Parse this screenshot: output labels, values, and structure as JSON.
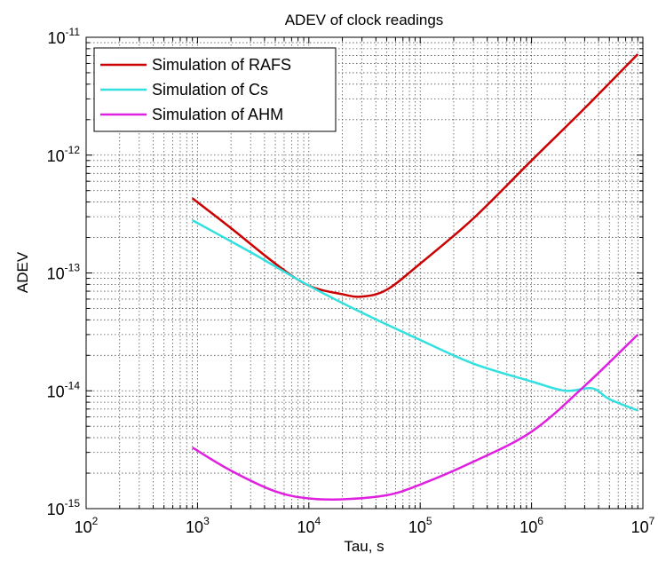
{
  "chart_data": {
    "type": "line",
    "title": "ADEV of clock readings",
    "xlabel": "Tau, s",
    "ylabel": "ADEV",
    "xscale": "log",
    "yscale": "log",
    "xlim": [
      100,
      10000000
    ],
    "ylim": [
      1e-15,
      1e-11
    ],
    "grid": true,
    "legend_position": "top-left",
    "x_ticks": [
      {
        "base": "10",
        "exp": "2"
      },
      {
        "base": "10",
        "exp": "3"
      },
      {
        "base": "10",
        "exp": "4"
      },
      {
        "base": "10",
        "exp": "5"
      },
      {
        "base": "10",
        "exp": "6"
      },
      {
        "base": "10",
        "exp": "7"
      }
    ],
    "y_ticks": [
      {
        "base": "10",
        "exp": "-15"
      },
      {
        "base": "10",
        "exp": "-14"
      },
      {
        "base": "10",
        "exp": "-13"
      },
      {
        "base": "10",
        "exp": "-12"
      },
      {
        "base": "10",
        "exp": "-11"
      }
    ],
    "series": [
      {
        "name": "Simulation of RAFS",
        "color": "#cc0000",
        "x": [
          900,
          2000,
          5000,
          10000,
          20000,
          30000,
          50000,
          100000,
          300000,
          1000000,
          3000000,
          9000000
        ],
        "y": [
          4.3e-13,
          2.4e-13,
          1.2e-13,
          7.8e-14,
          6.6e-14,
          6.3e-14,
          7.2e-14,
          1.2e-13,
          2.9e-13,
          9e-13,
          2.5e-12,
          7.2e-12
        ]
      },
      {
        "name": "Simulation of Cs",
        "color": "#33e0e0",
        "x": [
          900,
          3000,
          10000,
          30000,
          100000,
          300000,
          1000000,
          2000000,
          3500000,
          5000000,
          9000000
        ],
        "y": [
          2.8e-13,
          1.5e-13,
          7.8e-14,
          4.6e-14,
          2.7e-14,
          1.7e-14,
          1.2e-14,
          1e-14,
          1.05e-14,
          8.5e-15,
          6.8e-15
        ]
      },
      {
        "name": "Simulation of AHM",
        "color": "#e020e0",
        "x": [
          900,
          2000,
          5000,
          10000,
          20000,
          50000,
          100000,
          300000,
          1000000,
          3000000,
          9000000
        ],
        "y": [
          3.3e-15,
          2.1e-15,
          1.4e-15,
          1.22e-15,
          1.2e-15,
          1.3e-15,
          1.6e-15,
          2.5e-15,
          4.5e-15,
          1.1e-14,
          3e-14
        ]
      }
    ]
  }
}
